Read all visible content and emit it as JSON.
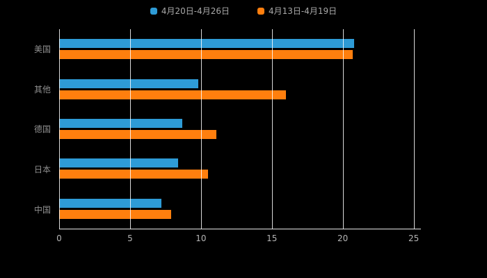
{
  "colors": {
    "background": "#000000",
    "gridline": "#ffffff",
    "axis_line": "#e8e8e8",
    "category_label": "#8f8f8f",
    "tick_label": "#b5b5b5",
    "legend_text": "#a8a8a8"
  },
  "chart_data": {
    "type": "bar",
    "orientation": "horizontal",
    "title": "",
    "xlabel": "",
    "ylabel": "",
    "categories": [
      "美国",
      "其他",
      "德国",
      "日本",
      "中国"
    ],
    "series": [
      {
        "name": "4月20日-4月26日",
        "color": "#2E9BD6",
        "values": [
          20.8,
          9.8,
          8.7,
          8.4,
          7.2
        ]
      },
      {
        "name": "4月13日-4月19日",
        "color": "#FF7F0E",
        "values": [
          20.7,
          16.0,
          11.1,
          10.5,
          7.9
        ]
      }
    ],
    "xlim": [
      0,
      25
    ],
    "ticks": [
      0,
      5,
      10,
      15,
      20,
      25
    ],
    "grid": true,
    "legend_position": "top"
  }
}
